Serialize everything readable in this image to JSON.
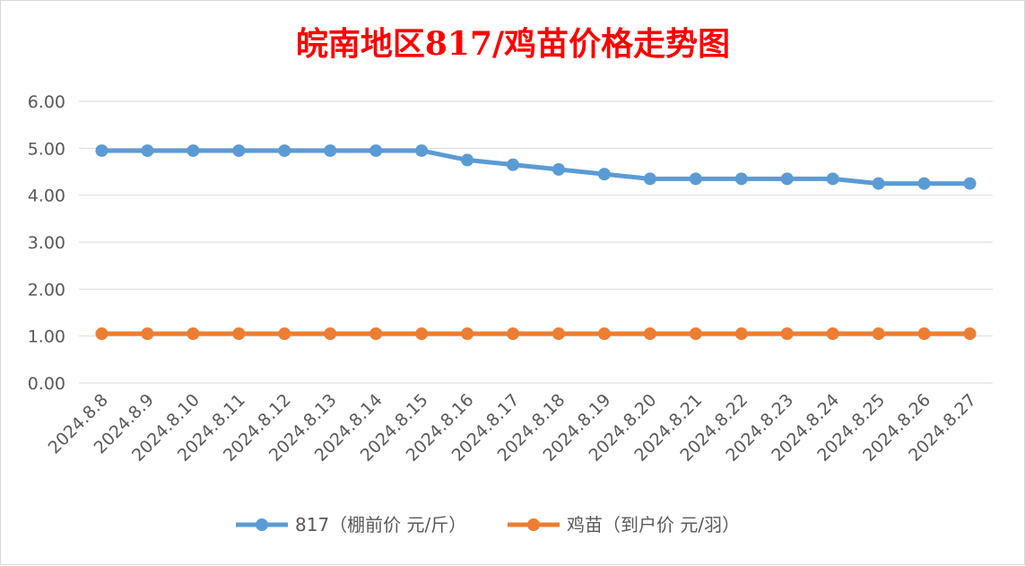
{
  "chart_data": {
    "type": "line",
    "title": "皖南地区817/鸡苗价格走势图",
    "xlabel": "",
    "ylabel": "",
    "ylim": [
      0,
      6
    ],
    "yticks": [
      "0.00",
      "1.00",
      "2.00",
      "3.00",
      "4.00",
      "5.00",
      "6.00"
    ],
    "grid": true,
    "legend_position": "bottom",
    "categories": [
      "2024.8.8",
      "2024.8.9",
      "2024.8.10",
      "2024.8.11",
      "2024.8.12",
      "2024.8.13",
      "2024.8.14",
      "2024.8.15",
      "2024.8.16",
      "2024.8.17",
      "2024.8.18",
      "2024.8.19",
      "2024.8.20",
      "2024.8.21",
      "2024.8.22",
      "2024.8.23",
      "2024.8.24",
      "2024.8.25",
      "2024.8.26",
      "2024.8.27"
    ],
    "series": [
      {
        "name": "817（棚前价 元/斤）",
        "color": "#5b9bd5",
        "values": [
          4.95,
          4.95,
          4.95,
          4.95,
          4.95,
          4.95,
          4.95,
          4.95,
          4.75,
          4.65,
          4.55,
          4.45,
          4.35,
          4.35,
          4.35,
          4.35,
          4.35,
          4.25,
          4.25,
          4.25
        ]
      },
      {
        "name": "鸡苗（到户价 元/羽）",
        "color": "#ed7d31",
        "values": [
          1.05,
          1.05,
          1.05,
          1.05,
          1.05,
          1.05,
          1.05,
          1.05,
          1.05,
          1.05,
          1.05,
          1.05,
          1.05,
          1.05,
          1.05,
          1.05,
          1.05,
          1.05,
          1.05,
          1.05
        ]
      }
    ]
  }
}
